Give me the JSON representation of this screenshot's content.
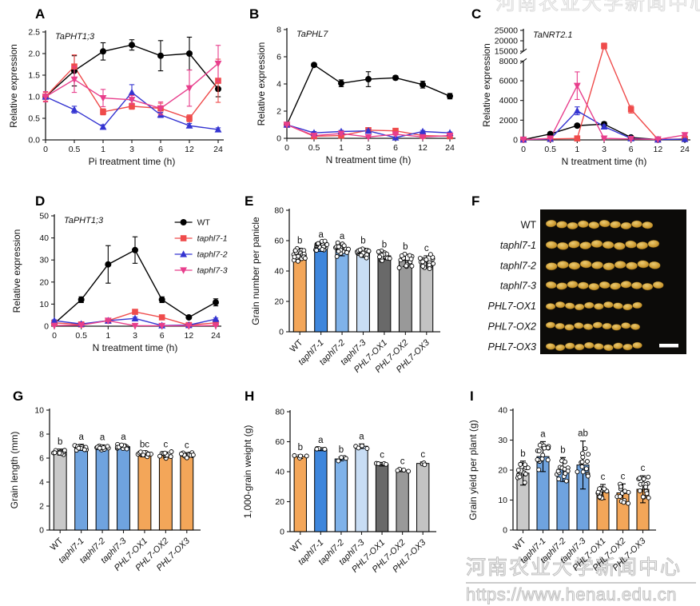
{
  "letters": {
    "A": "A",
    "B": "B",
    "C": "C",
    "D": "D",
    "E": "E",
    "F": "F",
    "G": "G",
    "H": "H",
    "I": "I"
  },
  "watermark": {
    "line1": "河南农业大学新闻中心",
    "line2": "https://www.henau.edu.cn"
  },
  "series_colors": {
    "WT": "#000000",
    "taphl7-1": "#EF4B4B",
    "taphl7-2": "#3434D1",
    "taphl7-3": "#E83E8C"
  },
  "grain_photo": {
    "background": "#0c0b09",
    "scale_bar_color": "#ffffff",
    "rows": [
      {
        "label": "WT",
        "italic": false,
        "count": 10,
        "size": 1.0
      },
      {
        "label": "taphl7-1",
        "italic": true,
        "count": 10,
        "size": 1.06
      },
      {
        "label": "taphl7-2",
        "italic": true,
        "count": 10,
        "size": 1.07
      },
      {
        "label": "taphl7-3",
        "italic": true,
        "count": 11,
        "size": 1.0
      },
      {
        "label": "PHL7-OX1",
        "italic": true,
        "count": 10,
        "size": 0.9
      },
      {
        "label": "PHL7-OX2",
        "italic": true,
        "count": 10,
        "size": 0.88
      },
      {
        "label": "PHL7-OX3",
        "italic": true,
        "count": 10,
        "size": 0.9
      }
    ]
  },
  "chart_data": [
    {
      "panel": "A",
      "type": "line",
      "title": "TaPHT1;3",
      "xlabel": "Pi treatment time (h)",
      "ylabel": "Relative expression",
      "x_ticklabels": [
        "0",
        "0.5",
        "1",
        "3",
        "6",
        "12",
        "24"
      ],
      "ylim": [
        0,
        2.5
      ],
      "ytick_vals": [
        0,
        0.5,
        1,
        1.5,
        2,
        2.5
      ],
      "ytick_labels": [
        "0.0",
        "0.5",
        "1.0",
        "1.5",
        "2.0",
        "2.5"
      ],
      "series": [
        {
          "name": "WT",
          "marker": "circle",
          "color": "#000000",
          "values": [
            1.0,
            1.6,
            2.05,
            2.2,
            1.95,
            2.0,
            1.18
          ],
          "errors": [
            0.05,
            0.35,
            0.2,
            0.12,
            0.35,
            0.38,
            0.18
          ]
        },
        {
          "name": "taphl7-1",
          "marker": "square",
          "color": "#EF4B4B",
          "values": [
            1.0,
            1.7,
            0.65,
            0.78,
            0.73,
            0.5,
            1.37
          ],
          "errors": [
            0.1,
            0.27,
            0.07,
            0.07,
            0.12,
            0.08,
            0.5
          ]
        },
        {
          "name": "taphl7-2",
          "marker": "triangle-up",
          "color": "#3434D1",
          "values": [
            1.0,
            0.7,
            0.3,
            1.1,
            0.58,
            0.33,
            0.24
          ],
          "errors": [
            0.05,
            0.08,
            0.05,
            0.18,
            0.06,
            0.05,
            0.04
          ]
        },
        {
          "name": "taphl7-3",
          "marker": "triangle-down",
          "color": "#E83E8C",
          "values": [
            1.0,
            1.4,
            0.97,
            0.93,
            0.73,
            1.2,
            1.77
          ],
          "errors": [
            0.12,
            0.3,
            0.2,
            0.1,
            0.15,
            0.42,
            0.42
          ]
        }
      ]
    },
    {
      "panel": "B",
      "type": "line",
      "title": "TaPHL7",
      "xlabel": "N treatment time (h)",
      "ylabel": "Relative expression",
      "x_ticklabels": [
        "0",
        "0.5",
        "1",
        "3",
        "6",
        "12",
        "24"
      ],
      "ylim": [
        0,
        8
      ],
      "ytick_vals": [
        0,
        2,
        4,
        6,
        8
      ],
      "ytick_labels": [
        "0",
        "2",
        "4",
        "6",
        "8"
      ],
      "series": [
        {
          "name": "WT",
          "marker": "circle",
          "color": "#000000",
          "values": [
            1.0,
            5.4,
            4.05,
            4.35,
            4.45,
            3.95,
            3.1
          ],
          "errors": [
            0.05,
            0.12,
            0.25,
            0.55,
            0.15,
            0.25,
            0.2
          ]
        },
        {
          "name": "taphl7-1",
          "marker": "square",
          "color": "#EF4B4B",
          "values": [
            1.0,
            0.15,
            0.2,
            0.6,
            0.55,
            0.2,
            0.15
          ],
          "errors": [
            0.05,
            0.04,
            0.05,
            0.08,
            0.08,
            0.05,
            0.04
          ]
        },
        {
          "name": "taphl7-2",
          "marker": "triangle-up",
          "color": "#3434D1",
          "values": [
            1.0,
            0.4,
            0.5,
            0.55,
            0.05,
            0.5,
            0.4
          ],
          "errors": [
            0.05,
            0.1,
            0.08,
            0.08,
            0.05,
            0.08,
            0.06
          ]
        },
        {
          "name": "taphl7-3",
          "marker": "triangle-down",
          "color": "#E83E8C",
          "values": [
            1.0,
            0.2,
            0.35,
            0.1,
            0.3,
            0.1,
            0.2
          ],
          "errors": [
            0.05,
            0.05,
            0.06,
            0.04,
            0.06,
            0.04,
            0.05
          ]
        }
      ]
    },
    {
      "panel": "C",
      "type": "line",
      "title": "TaNRT2.1",
      "xlabel": "N treatment time (h)",
      "ylabel": "Relative expression",
      "x_ticklabels": [
        "0",
        "0.5",
        "1",
        "3",
        "6",
        "12",
        "24"
      ],
      "ylim": [
        0,
        25000
      ],
      "axis_break": {
        "lower": [
          0,
          8000
        ],
        "upper": [
          15000,
          25000
        ]
      },
      "ytick_vals": [
        0,
        2000,
        4000,
        6000,
        8000,
        15000,
        20000,
        25000
      ],
      "ytick_labels": [
        "0",
        "2000",
        "4000",
        "6000",
        "8000",
        "15000",
        "20000",
        "25000"
      ],
      "series": [
        {
          "name": "WT",
          "marker": "circle",
          "color": "#000000",
          "values": [
            30,
            600,
            1450,
            1600,
            250,
            30,
            80
          ],
          "errors": [
            10,
            90,
            130,
            220,
            60,
            10,
            20
          ]
        },
        {
          "name": "taphl7-1",
          "marker": "square",
          "color": "#EF4B4B",
          "values": [
            30,
            100,
            150,
            17500,
            3100,
            50,
            100
          ],
          "errors": [
            10,
            30,
            40,
            1400,
            380,
            15,
            25
          ]
        },
        {
          "name": "taphl7-2",
          "marker": "triangle-up",
          "color": "#3434D1",
          "values": [
            30,
            100,
            2950,
            1350,
            150,
            30,
            80
          ],
          "errors": [
            10,
            30,
            400,
            170,
            40,
            10,
            20
          ]
        },
        {
          "name": "taphl7-3",
          "marker": "triangle-down",
          "color": "#E83E8C",
          "values": [
            30,
            150,
            5500,
            150,
            100,
            50,
            500
          ],
          "errors": [
            10,
            40,
            1400,
            40,
            25,
            15,
            60
          ]
        }
      ]
    },
    {
      "panel": "D",
      "type": "line",
      "title": "TaPHT1;3",
      "legend": true,
      "xlabel": "N treatment time (h)",
      "ylabel": "Relative expression",
      "x_ticklabels": [
        "0",
        "0.5",
        "1",
        "3",
        "6",
        "12",
        "24"
      ],
      "ylim": [
        0,
        50
      ],
      "ytick_vals": [
        0,
        10,
        20,
        30,
        40,
        50
      ],
      "ytick_labels": [
        "0",
        "10",
        "20",
        "30",
        "40",
        "50"
      ],
      "series": [
        {
          "name": "WT",
          "marker": "circle",
          "color": "#000000",
          "values": [
            1.2,
            12,
            28,
            34.5,
            12,
            4,
            10.8
          ],
          "errors": [
            0.3,
            1.3,
            8.5,
            6,
            1.3,
            0.6,
            1.6
          ]
        },
        {
          "name": "taphl7-1",
          "marker": "square",
          "color": "#EF4B4B",
          "values": [
            1.5,
            0.8,
            2.5,
            6.5,
            4,
            0.5,
            1.5
          ],
          "errors": [
            0.3,
            0.2,
            0.5,
            0.8,
            0.6,
            0.2,
            0.4
          ]
        },
        {
          "name": "taphl7-2",
          "marker": "triangle-up",
          "color": "#3434D1",
          "values": [
            2.5,
            1.0,
            2.5,
            3.5,
            0.3,
            0.5,
            3.2
          ],
          "errors": [
            0.4,
            0.3,
            0.5,
            0.6,
            0.1,
            0.2,
            0.5
          ]
        },
        {
          "name": "taphl7-3",
          "marker": "triangle-down",
          "color": "#E83E8C",
          "values": [
            0.3,
            0.5,
            2.5,
            0.2,
            0.2,
            0.2,
            0.3
          ],
          "errors": [
            0.1,
            0.2,
            0.5,
            0.1,
            0.1,
            0.1,
            0.1
          ]
        }
      ]
    },
    {
      "panel": "E",
      "type": "bar",
      "ylabel": "Grain number per panicle",
      "ylim": [
        0,
        80
      ],
      "ytick_vals": [
        0,
        20,
        40,
        60,
        80
      ],
      "ytick_labels": [
        "0",
        "20",
        "40",
        "60",
        "80"
      ],
      "categories": [
        "WT",
        "taphl7-1",
        "taphl7-2",
        "taphl7-3",
        "PHL7-OX1",
        "PHL7-OX2",
        "PHL7-OX3"
      ],
      "cat_italic": [
        false,
        true,
        true,
        true,
        true,
        true,
        true
      ],
      "values": [
        51,
        56,
        54,
        52,
        50,
        47,
        46
      ],
      "errors": [
        4,
        3,
        4,
        3,
        2.5,
        4,
        4
      ],
      "letters": [
        "b",
        "a",
        "a",
        "b",
        "b",
        "b",
        "c"
      ],
      "colors": [
        "#F3A659",
        "#3E86DC",
        "#7FB2E9",
        "#C8DDF4",
        "#696969",
        "#999999",
        "#C3C3C3"
      ],
      "scatter_n": [
        20,
        18,
        20,
        18,
        15,
        16,
        16
      ],
      "scatter_spread": [
        5,
        4.5,
        5,
        4.5,
        4,
        5.5,
        5.5
      ]
    },
    {
      "panel": "G",
      "type": "bar",
      "ylabel": "Grain length (mm)",
      "ylim": [
        0,
        10
      ],
      "ytick_vals": [
        0,
        2,
        4,
        6,
        8,
        10
      ],
      "ytick_labels": [
        "0",
        "2",
        "4",
        "6",
        "8",
        "10"
      ],
      "categories": [
        "WT",
        "taphl7-1",
        "taphl7-2",
        "taphl7-3",
        "PHL7-OX1",
        "PHL7-OX2",
        "PHL7-OX3"
      ],
      "cat_italic": [
        false,
        true,
        true,
        true,
        true,
        true,
        true
      ],
      "values": [
        6.5,
        6.9,
        6.85,
        6.95,
        6.3,
        6.25,
        6.25
      ],
      "errors": [
        0.25,
        0.25,
        0.25,
        0.2,
        0.2,
        0.25,
        0.2
      ],
      "letters": [
        "b",
        "a",
        "a",
        "a",
        "bc",
        "c",
        "c"
      ],
      "colors": [
        "#C9C9C9",
        "#6FA3DF",
        "#6FA3DF",
        "#6FA3DF",
        "#F3A659",
        "#F3A659",
        "#F3A659"
      ],
      "scatter_n": [
        12,
        14,
        13,
        12,
        12,
        12,
        12
      ],
      "scatter_spread": [
        0.3,
        0.3,
        0.3,
        0.25,
        0.25,
        0.3,
        0.25
      ]
    },
    {
      "panel": "H",
      "type": "bar",
      "ylabel": "1,000-grain weight (g)",
      "ylim": [
        0,
        80
      ],
      "ytick_vals": [
        0,
        20,
        40,
        60,
        80
      ],
      "ytick_labels": [
        "0",
        "20",
        "40",
        "60",
        "80"
      ],
      "categories": [
        "WT",
        "taphl7-1",
        "taphl7-2",
        "taphl7-3",
        "PHL7-OX1",
        "PHL7-OX2",
        "PHL7-OX3"
      ],
      "cat_italic": [
        false,
        true,
        true,
        true,
        true,
        true,
        true
      ],
      "values": [
        50,
        55,
        48.5,
        57,
        45,
        41,
        45.5
      ],
      "errors": [
        1.2,
        1,
        1.2,
        1.5,
        1.2,
        1,
        1
      ],
      "letters": [
        "b",
        "a",
        "b",
        "a",
        "c",
        "c",
        "c"
      ],
      "colors": [
        "#F3A659",
        "#3E86DC",
        "#7FB2E9",
        "#C8DDF4",
        "#696969",
        "#999999",
        "#C3C3C3"
      ],
      "scatter_n": [
        4,
        4,
        4,
        4,
        4,
        4,
        4
      ],
      "scatter_spread": [
        1.5,
        1.2,
        1.5,
        1.8,
        1.5,
        1.2,
        1.2
      ]
    },
    {
      "panel": "I",
      "type": "bar",
      "ylabel": "Grain yield per plant (g)",
      "ylim": [
        0,
        40
      ],
      "ytick_vals": [
        0,
        10,
        20,
        30,
        40
      ],
      "ytick_labels": [
        "0",
        "10",
        "20",
        "30",
        "40"
      ],
      "categories": [
        "WT",
        "taphl7-1",
        "taphl7-2",
        "taphl7-3",
        "PHL7-OX1",
        "PHL7-OX2",
        "PHL7-OX3"
      ],
      "cat_italic": [
        false,
        true,
        true,
        true,
        true,
        true,
        true
      ],
      "values": [
        19,
        24.5,
        20.2,
        21.7,
        12.7,
        12.4,
        13.6
      ],
      "errors": [
        4,
        5,
        4,
        8,
        2.5,
        3,
        4.5
      ],
      "letters": [
        "b",
        "a",
        "b",
        "ab",
        "c",
        "c",
        "c"
      ],
      "colors": [
        "#C9C9C9",
        "#6FA3DF",
        "#6FA3DF",
        "#6FA3DF",
        "#F3A659",
        "#F3A659",
        "#F3A659"
      ],
      "scatter_n": [
        15,
        17,
        15,
        14,
        12,
        13,
        15
      ],
      "scatter_spread": [
        5,
        6,
        5,
        9,
        3.5,
        4,
        5.5
      ]
    }
  ]
}
